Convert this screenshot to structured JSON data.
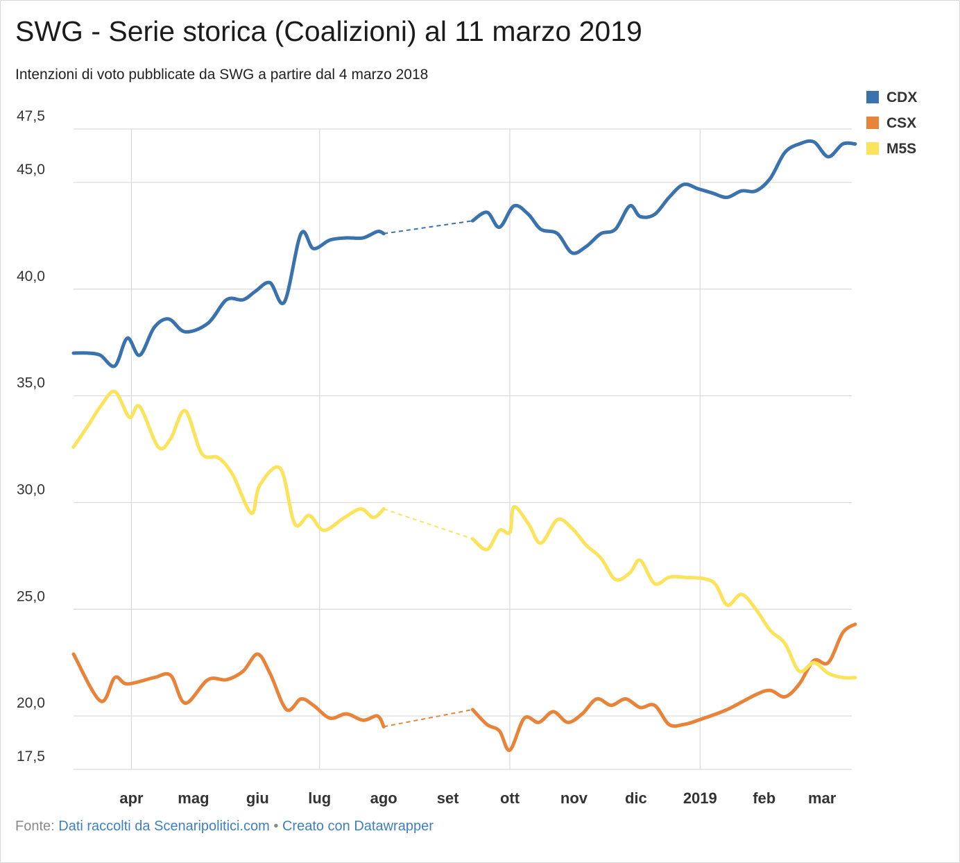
{
  "header": {
    "title": "SWG - Serie storica (Coalizioni) al 11 marzo 2019",
    "subtitle": "Intenzioni di voto pubblicate da SWG a partire dal 4 marzo 2018"
  },
  "footer": {
    "prefix": "Fonte:",
    "source_link": "Dati raccolti da Scenaripolitici.com",
    "separator": "•",
    "credit_link": "Creato con Datawrapper"
  },
  "chart_data": {
    "type": "line",
    "title": "SWG - Serie storica (Coalizioni) al 11 marzo 2019",
    "subtitle": "Intenzioni di voto pubblicate da SWG a partire dal 4 marzo 2018",
    "xlabel": "",
    "ylabel": "",
    "ylim": [
      17.5,
      47.5
    ],
    "xlim": [
      "2018-03-04",
      "2019-03-11"
    ],
    "y_ticks": [
      "47,5",
      "45,0",
      "40,0",
      "35,0",
      "30,0",
      "25,0",
      "20,0",
      "17,5"
    ],
    "y_tick_values": [
      47.5,
      45,
      40,
      35,
      30,
      25,
      20,
      17.5
    ],
    "x_ticks": [
      {
        "date": "2018-04-01",
        "label": "apr"
      },
      {
        "date": "2018-05-01",
        "label": "mag"
      },
      {
        "date": "2018-06-01",
        "label": "giu"
      },
      {
        "date": "2018-07-01",
        "label": "lug"
      },
      {
        "date": "2018-08-01",
        "label": "ago"
      },
      {
        "date": "2018-09-01",
        "label": "set"
      },
      {
        "date": "2018-10-01",
        "label": "ott"
      },
      {
        "date": "2018-11-01",
        "label": "nov"
      },
      {
        "date": "2018-12-01",
        "label": "dic"
      },
      {
        "date": "2019-01-01",
        "label": "2019"
      },
      {
        "date": "2019-02-01",
        "label": "feb"
      },
      {
        "date": "2019-03-01",
        "label": "mar"
      }
    ],
    "gridlines_x": [
      "2018-04-01",
      "2018-07-01",
      "2018-10-01",
      "2019-01-01"
    ],
    "grid": true,
    "legend": "top-right",
    "gap": {
      "from": "2018-08-01",
      "to": "2018-09-13",
      "style": "dashed"
    },
    "series": [
      {
        "name": "CDX",
        "color": "#3a72ad",
        "points": [
          [
            "2018-03-04",
            37.0
          ],
          [
            "2018-03-11",
            37.0
          ],
          [
            "2018-03-17",
            36.9
          ],
          [
            "2018-03-24",
            36.4
          ],
          [
            "2018-03-30",
            37.7
          ],
          [
            "2018-04-05",
            36.9
          ],
          [
            "2018-04-12",
            38.2
          ],
          [
            "2018-04-19",
            38.6
          ],
          [
            "2018-04-27",
            38.0
          ],
          [
            "2018-05-08",
            38.4
          ],
          [
            "2018-05-17",
            39.5
          ],
          [
            "2018-05-25",
            39.5
          ],
          [
            "2018-05-31",
            39.9
          ],
          [
            "2018-06-07",
            40.3
          ],
          [
            "2018-06-14",
            39.4
          ],
          [
            "2018-06-22",
            42.6
          ],
          [
            "2018-06-28",
            41.9
          ],
          [
            "2018-07-06",
            42.3
          ],
          [
            "2018-07-14",
            42.4
          ],
          [
            "2018-07-22",
            42.4
          ],
          [
            "2018-07-29",
            42.7
          ],
          [
            "2018-08-01",
            42.6
          ],
          [
            "2018-09-13",
            43.2
          ],
          [
            "2018-09-20",
            43.6
          ],
          [
            "2018-09-26",
            42.9
          ],
          [
            "2018-10-03",
            43.9
          ],
          [
            "2018-10-10",
            43.5
          ],
          [
            "2018-10-16",
            42.8
          ],
          [
            "2018-10-24",
            42.6
          ],
          [
            "2018-10-31",
            41.7
          ],
          [
            "2018-11-07",
            42.0
          ],
          [
            "2018-11-14",
            42.6
          ],
          [
            "2018-11-21",
            42.8
          ],
          [
            "2018-11-28",
            43.9
          ],
          [
            "2018-12-03",
            43.4
          ],
          [
            "2018-12-10",
            43.5
          ],
          [
            "2018-12-17",
            44.3
          ],
          [
            "2018-12-24",
            44.9
          ],
          [
            "2018-12-31",
            44.7
          ],
          [
            "2019-01-07",
            44.5
          ],
          [
            "2019-01-14",
            44.3
          ],
          [
            "2019-01-21",
            44.6
          ],
          [
            "2019-01-28",
            44.6
          ],
          [
            "2019-02-04",
            45.2
          ],
          [
            "2019-02-11",
            46.4
          ],
          [
            "2019-02-18",
            46.8
          ],
          [
            "2019-02-25",
            46.9
          ],
          [
            "2019-03-04",
            46.2
          ],
          [
            "2019-03-11",
            46.8
          ],
          [
            "2019-03-17",
            46.8
          ]
        ]
      },
      {
        "name": "CSX",
        "color": "#e8833a",
        "points": [
          [
            "2018-03-04",
            22.9
          ],
          [
            "2018-03-17",
            20.7
          ],
          [
            "2018-03-24",
            21.8
          ],
          [
            "2018-03-30",
            21.5
          ],
          [
            "2018-04-12",
            21.8
          ],
          [
            "2018-04-20",
            21.9
          ],
          [
            "2018-04-27",
            20.6
          ],
          [
            "2018-05-08",
            21.7
          ],
          [
            "2018-05-17",
            21.7
          ],
          [
            "2018-05-25",
            22.1
          ],
          [
            "2018-06-01",
            22.9
          ],
          [
            "2018-06-07",
            22.0
          ],
          [
            "2018-06-15",
            20.3
          ],
          [
            "2018-06-22",
            20.8
          ],
          [
            "2018-06-28",
            20.5
          ],
          [
            "2018-07-06",
            19.9
          ],
          [
            "2018-07-14",
            20.1
          ],
          [
            "2018-07-22",
            19.8
          ],
          [
            "2018-07-29",
            20.0
          ],
          [
            "2018-08-01",
            19.5
          ],
          [
            "2018-09-13",
            20.3
          ],
          [
            "2018-09-20",
            19.6
          ],
          [
            "2018-09-26",
            19.3
          ],
          [
            "2018-10-01",
            18.4
          ],
          [
            "2018-10-08",
            19.9
          ],
          [
            "2018-10-15",
            19.7
          ],
          [
            "2018-10-22",
            20.2
          ],
          [
            "2018-10-29",
            19.7
          ],
          [
            "2018-11-05",
            20.1
          ],
          [
            "2018-11-12",
            20.8
          ],
          [
            "2018-11-19",
            20.5
          ],
          [
            "2018-11-26",
            20.8
          ],
          [
            "2018-12-03",
            20.4
          ],
          [
            "2018-12-10",
            20.5
          ],
          [
            "2018-12-17",
            19.6
          ],
          [
            "2018-12-24",
            19.6
          ],
          [
            "2018-12-31",
            19.8
          ],
          [
            "2019-01-14",
            20.3
          ],
          [
            "2019-01-28",
            21.0
          ],
          [
            "2019-02-04",
            21.2
          ],
          [
            "2019-02-11",
            20.9
          ],
          [
            "2019-02-18",
            21.5
          ],
          [
            "2019-02-25",
            22.6
          ],
          [
            "2019-03-04",
            22.5
          ],
          [
            "2019-03-11",
            23.9
          ],
          [
            "2019-03-17",
            24.3
          ]
        ]
      },
      {
        "name": "M5S",
        "color": "#fbe35b",
        "points": [
          [
            "2018-03-04",
            32.6
          ],
          [
            "2018-03-11",
            33.6
          ],
          [
            "2018-03-17",
            34.5
          ],
          [
            "2018-03-24",
            35.2
          ],
          [
            "2018-03-31",
            34.0
          ],
          [
            "2018-04-05",
            34.5
          ],
          [
            "2018-04-14",
            32.6
          ],
          [
            "2018-04-20",
            33.0
          ],
          [
            "2018-04-27",
            34.3
          ],
          [
            "2018-05-05",
            32.3
          ],
          [
            "2018-05-13",
            32.1
          ],
          [
            "2018-05-20",
            31.3
          ],
          [
            "2018-05-29",
            29.5
          ],
          [
            "2018-06-02",
            30.8
          ],
          [
            "2018-06-12",
            31.6
          ],
          [
            "2018-06-19",
            29.0
          ],
          [
            "2018-06-26",
            29.4
          ],
          [
            "2018-07-03",
            28.7
          ],
          [
            "2018-07-13",
            29.3
          ],
          [
            "2018-07-21",
            29.7
          ],
          [
            "2018-07-27",
            29.3
          ],
          [
            "2018-08-01",
            29.7
          ],
          [
            "2018-09-13",
            28.3
          ],
          [
            "2018-09-20",
            27.8
          ],
          [
            "2018-09-26",
            28.7
          ],
          [
            "2018-10-01",
            28.6
          ],
          [
            "2018-10-03",
            29.8
          ],
          [
            "2018-10-10",
            29.0
          ],
          [
            "2018-10-16",
            28.1
          ],
          [
            "2018-10-24",
            29.2
          ],
          [
            "2018-10-31",
            28.8
          ],
          [
            "2018-11-07",
            28.0
          ],
          [
            "2018-11-14",
            27.4
          ],
          [
            "2018-11-21",
            26.4
          ],
          [
            "2018-11-28",
            26.7
          ],
          [
            "2018-12-03",
            27.3
          ],
          [
            "2018-12-10",
            26.2
          ],
          [
            "2018-12-17",
            26.5
          ],
          [
            "2018-12-24",
            26.5
          ],
          [
            "2019-01-07",
            26.3
          ],
          [
            "2019-01-14",
            25.2
          ],
          [
            "2019-01-21",
            25.7
          ],
          [
            "2019-01-28",
            25.0
          ],
          [
            "2019-02-04",
            24.0
          ],
          [
            "2019-02-11",
            23.4
          ],
          [
            "2019-02-18",
            22.1
          ],
          [
            "2019-02-25",
            22.5
          ],
          [
            "2019-03-04",
            22.0
          ],
          [
            "2019-03-11",
            21.8
          ],
          [
            "2019-03-17",
            21.8
          ]
        ]
      }
    ]
  }
}
